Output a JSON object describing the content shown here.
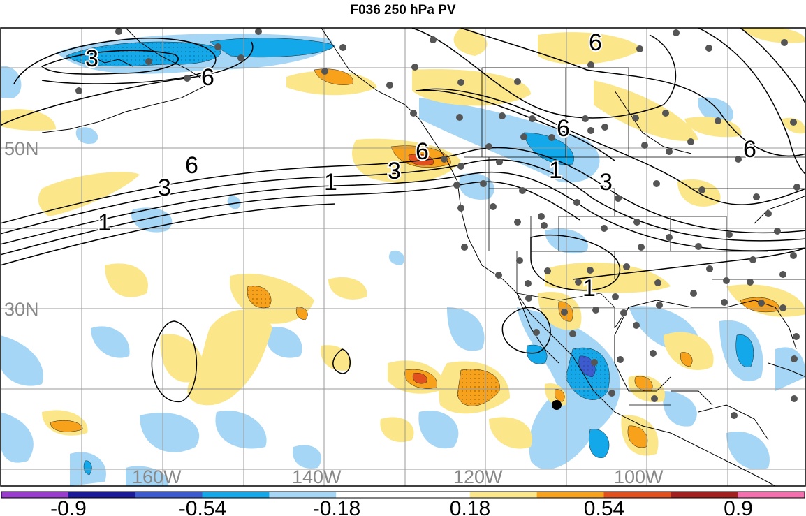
{
  "title": "F036 250 hPa PV",
  "map": {
    "graticule": {
      "lon_labels": [
        "160W",
        "140W",
        "120W",
        "100W"
      ],
      "lat_labels": [
        "50N",
        "30N"
      ]
    },
    "contour_labels": {
      "jet_west": [
        "1",
        "3",
        "6"
      ],
      "jet_center": [
        "1",
        "3",
        "6"
      ],
      "aleutian": [
        "3",
        "6"
      ],
      "canada": [
        "6",
        "6"
      ],
      "plains": [
        "1",
        "3",
        "6"
      ],
      "southwest": [
        "1"
      ]
    },
    "storm_marker": "tropical-cyclone-dot"
  },
  "colorbar": {
    "tick_labels": [
      "-0.9",
      "-0.54",
      "-0.18",
      "0.18",
      "0.54",
      "0.9"
    ],
    "colors": [
      "#9a3ccf",
      "#1a1a9a",
      "#3d5bd0",
      "#12a8ea",
      "#a6d6f6",
      "#ffffff",
      "#ffffff",
      "#fbe68a",
      "#f7a21a",
      "#e2501e",
      "#a3201e",
      "#f56fae"
    ]
  },
  "anomaly_colors": {
    "light_blue": "#a6d6f6",
    "blue": "#12a8ea",
    "dark_blue": "#3d5bd0",
    "light_yellow": "#fbe68a",
    "orange": "#f7a21a",
    "red_orange": "#e2501e"
  }
}
